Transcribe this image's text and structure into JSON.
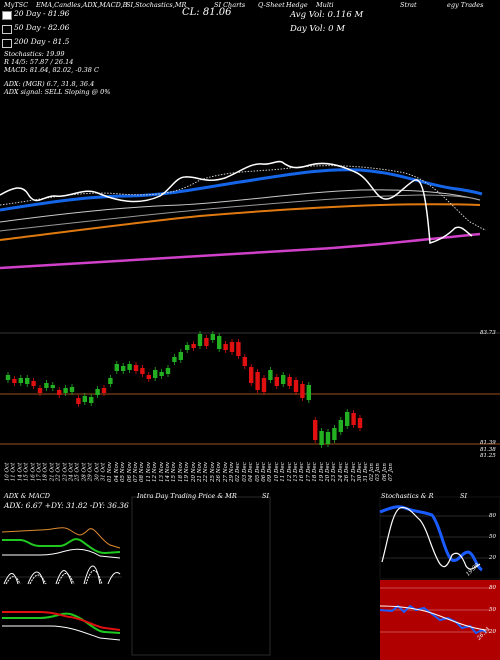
{
  "header": {
    "title_parts": [
      "MyTSC",
      "EMA,Candles,ADX,MACD,B",
      "SI,Stochastics,MR",
      "SI Charts",
      "Q-Sheet",
      "Hedge",
      "Multi",
      "Strat",
      "egy Trades"
    ],
    "cl_label": "CL: 81.06",
    "avg_vol": "Avg Vol: 0.116  M",
    "day_vol": "Day Vol: 0  M",
    "legend_20": "20  Day - 81.96",
    "legend_50": "50  Day - 82.06",
    "legend_200": "200  Day - 81.5",
    "stochastics": "Stochastics: 19.99",
    "r_line": "R           14/5: 57.87 / 26.14",
    "macd": "MACD: 81.64, 82.02, -0.38  C",
    "adx": "ADX:                                    (MGR) 6.7, 31.8, 36.4",
    "adx_signal": "ADX  signal: SELL  Sloping @ 0%"
  },
  "price_axis": {
    "label_top": "83.73",
    "label_low1": "81.39",
    "label_low2": "81.38",
    "label_low3": "81.25"
  },
  "dates": [
    "10 Oct",
    "11 Oct",
    "14 Oct",
    "15 Oct",
    "16 Oct",
    "17 Oct",
    "18 Oct",
    "21 Oct",
    "22 Oct",
    "23 Oct",
    "24 Oct",
    "25 Oct",
    "28 Oct",
    "29 Oct",
    "30 Oct",
    "31 Oct",
    "01 Nov",
    "04 Nov",
    "05 Nov",
    "06 Nov",
    "07 Nov",
    "08 Nov",
    "11 Nov",
    "12 Nov",
    "13 Nov",
    "14 Nov",
    "15 Nov",
    "18 Nov",
    "19 Nov",
    "20 Nov",
    "21 Nov",
    "22 Nov",
    "25 Nov",
    "26 Nov",
    "27 Nov",
    "29 Nov",
    "02 Dec",
    "03 Dec",
    "04 Dec",
    "05 Dec",
    "06 Dec",
    "09 Dec",
    "10 Dec",
    "11 Dec",
    "12 Dec",
    "13 Dec",
    "16 Dec",
    "17 Dec",
    "18 Dec",
    "19 Dec",
    "20 Dec",
    "23 Dec",
    "24 Dec",
    "26 Dec",
    "27 Dec",
    "30 Dec",
    "31 Dec",
    "02 Jan",
    "03 Jan",
    "06 Jan",
    "07 Jan"
  ],
  "panels": {
    "adx_title": "ADX  & MACD",
    "adx_values": "ADX: 6.67  +DY: 31.82  -DY: 36.36",
    "intraday_title": "Intra  Day Trading Price  & MR",
    "intraday_si": "SI",
    "stoch_title": "Stochastics & R",
    "stoch_si": "SI",
    "stoch_axis": [
      "80",
      "50",
      "20"
    ],
    "stoch_value": "19.99",
    "rsi_axis": [
      "80",
      "50",
      "20"
    ],
    "rsi_value": "26.14"
  },
  "colors": {
    "ema20": "#ffffff",
    "ema50": "#1565e8",
    "ema_mid": "#c8c8c8",
    "ema200": "#e07a10",
    "ema_pink": "#d040c8",
    "up": "#22b022",
    "down": "#e01010",
    "ref_line": "#a05020",
    "rsi_bg": "#b00000",
    "stoch_blue": "#1a5cff"
  }
}
